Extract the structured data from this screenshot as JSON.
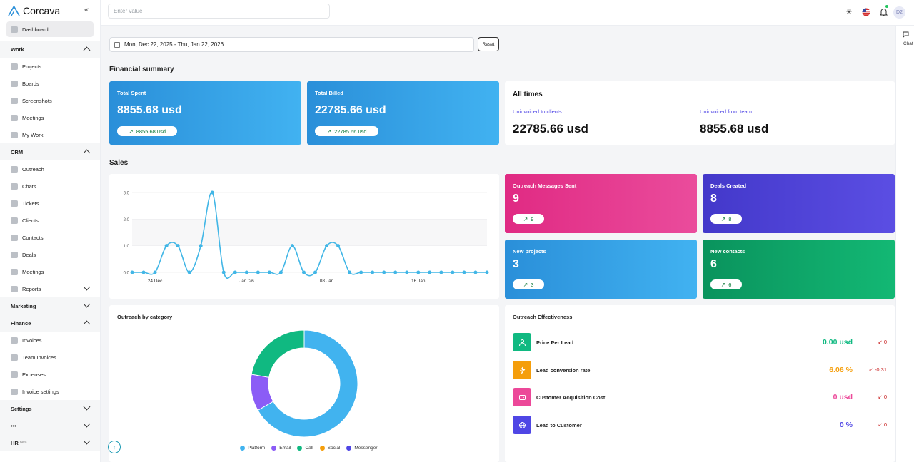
{
  "app": {
    "name": "Corcava"
  },
  "search": {
    "placeholder": "Enter value"
  },
  "topbar": {
    "avatar": "D2"
  },
  "chat": {
    "label": "Chat"
  },
  "sidebar": {
    "dashboard": "Dashboard",
    "work": {
      "label": "Work",
      "items": [
        "Projects",
        "Boards",
        "Screenshots",
        "Meetings",
        "My Work"
      ]
    },
    "crm": {
      "label": "CRM",
      "items": [
        "Outreach",
        "Chats",
        "Tickets",
        "Clients",
        "Contacts",
        "Deals",
        "Meetings"
      ]
    },
    "reports": "Reports",
    "marketing": "Marketing",
    "finance": {
      "label": "Finance",
      "items": [
        "Invoices",
        "Team Invoices",
        "Expenses",
        "Invoice settings"
      ]
    },
    "settings": "Settings",
    "more": "•••",
    "hr": {
      "label": "HR",
      "badge": "beta"
    }
  },
  "date_range": {
    "value": "Mon, Dec 22, 2025 - Thu, Jan 22, 2026",
    "reset": "Reset"
  },
  "financial_summary": {
    "title": "Financial summary",
    "total_spent": {
      "label": "Total Spent",
      "value": "8855.68 usd",
      "trend": "8855.68 usd"
    },
    "total_billed": {
      "label": "Total Billed",
      "value": "22785.66 usd",
      "trend": "22785.66 usd"
    },
    "all_times": {
      "title": "All times",
      "uninvoiced_clients_label": "Uninvoiced to clients",
      "uninvoiced_clients_value": "22785.66 usd",
      "uninvoiced_team_label": "Uninvoiced from team",
      "uninvoiced_team_value": "8855.68 usd"
    }
  },
  "sales": {
    "title": "Sales",
    "outreach_messages": {
      "label": "Outreach Messages Sent",
      "value": "9",
      "trend": "9"
    },
    "deals_created": {
      "label": "Deals Created",
      "value": "8",
      "trend": "8"
    },
    "new_projects": {
      "label": "New projects",
      "value": "3",
      "trend": "3"
    },
    "new_contacts": {
      "label": "New contacts",
      "value": "6",
      "trend": "6"
    }
  },
  "colors": {
    "line": "#41b6e6",
    "platform": "#41b3ef",
    "email": "#8b5cf6",
    "call": "#10b981",
    "social": "#f59e0b",
    "messenger": "#4f46e5"
  },
  "chart_data": [
    {
      "type": "line",
      "x": [
        "Dec 22",
        "Dec 23",
        "Dec 24",
        "Dec 25",
        "Dec 26",
        "Dec 27",
        "Dec 28",
        "Dec 29",
        "Dec 30",
        "Dec 31",
        "Jan 1",
        "Jan 2",
        "Jan 3",
        "Jan 4",
        "Jan 5",
        "Jan 6",
        "Jan 7",
        "Jan 8",
        "Jan 9",
        "Jan 10",
        "Jan 11",
        "Jan 12",
        "Jan 13",
        "Jan 14",
        "Jan 15",
        "Jan 16",
        "Jan 17",
        "Jan 18",
        "Jan 19",
        "Jan 20",
        "Jan 21",
        "Jan 22"
      ],
      "series": [
        {
          "values": [
            0,
            0,
            0,
            1,
            1,
            0,
            1,
            3,
            0,
            0,
            0,
            0,
            0,
            0,
            1,
            0,
            0,
            1,
            1,
            0,
            0,
            0,
            0,
            0,
            0,
            0,
            0,
            0,
            0,
            0,
            0,
            0
          ]
        }
      ],
      "xticks": [
        {
          "label": "24 Dec",
          "index": 2
        },
        {
          "label": "Jan '26",
          "index": 10
        },
        {
          "label": "08 Jan",
          "index": 17
        },
        {
          "label": "16 Jan",
          "index": 25
        }
      ],
      "yticks": [
        "0.0",
        "1.0",
        "2.0",
        "3.0"
      ],
      "ylim": [
        0,
        3
      ],
      "grid": true
    },
    {
      "type": "pie",
      "title": "Outreach by category",
      "labels": [
        "Platform",
        "Email",
        "Call",
        "Social",
        "Messenger"
      ],
      "values": [
        6,
        1,
        2,
        0,
        0
      ],
      "legend": "bottom"
    }
  ],
  "effectiveness": {
    "title": "Outreach Effectiveness",
    "rows": [
      {
        "label": "Price Per Lead",
        "value": "0.00 usd",
        "trend": "0",
        "color": "#10b981",
        "icon": "user-icon"
      },
      {
        "label": "Lead conversion rate",
        "value": "6.06 %",
        "trend": "-0.31",
        "color": "#f59e0b",
        "icon": "bolt-icon"
      },
      {
        "label": "Customer Acquisition Cost",
        "value": "0 usd",
        "trend": "0",
        "color": "#ec4899",
        "icon": "wallet-icon"
      },
      {
        "label": "Lead to Customer",
        "value": "0 %",
        "trend": "0",
        "color": "#4f46e5",
        "icon": "globe-icon"
      }
    ]
  }
}
